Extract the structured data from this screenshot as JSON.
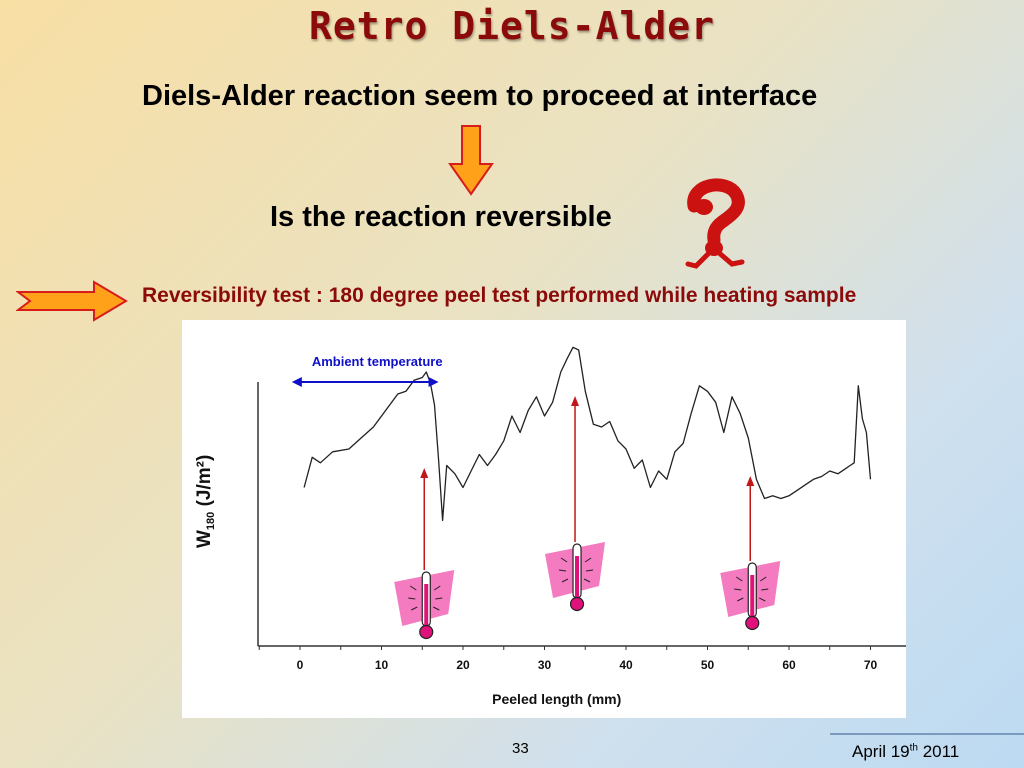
{
  "slide": {
    "title": "Retro Diels-Alder",
    "line1": "Diels-Alder reaction seem to proceed at interface",
    "line2": "Is the reaction reversible",
    "line3": "Reversibility test : 180 degree peel test performed while heating sample",
    "page_number": "33",
    "date_month_day": "April 19",
    "date_suffix": "th",
    "date_year": " 2011"
  },
  "colors": {
    "title": "#8b0a0a",
    "arrow_fill": "#ffa21a",
    "arrow_stroke": "#d81c1c",
    "question_mark": "#cc1111",
    "annotation_blue": "#1010c8",
    "heating_arrow": "#c01818",
    "thermometer_pink": "#f47bc0",
    "line": "#222222"
  },
  "icons": [
    "down-arrow-icon",
    "question-mark-icon",
    "right-arrow-icon",
    "thermometer-icon"
  ],
  "chart_data": {
    "type": "line",
    "xlabel": "Peeled length (mm)",
    "ylabel_main": "W",
    "ylabel_sub": "180",
    "ylabel_unit": " (J/m²)",
    "x_ticks": [
      0,
      10,
      20,
      30,
      40,
      50,
      60,
      70
    ],
    "xlim": [
      -5,
      75
    ],
    "ylim": [
      0,
      100
    ],
    "annotation": "Ambient temperature",
    "ambient_range": [
      -1,
      17
    ],
    "heating_points": [
      15,
      33.5,
      55
    ],
    "series": [
      {
        "x": [
          0.5,
          1.5,
          2.5,
          4,
          6,
          7.5,
          9,
          10.5,
          12,
          13,
          14,
          15,
          15.5,
          16,
          16.5,
          17,
          17.5,
          18,
          19,
          20,
          21,
          22,
          23,
          24,
          25,
          26,
          27,
          28,
          29,
          30,
          31,
          32,
          32.8,
          33.5,
          34.2,
          35,
          36,
          37,
          38,
          39,
          40,
          41,
          42,
          43,
          44,
          45,
          46,
          47,
          48,
          49,
          50,
          51,
          52,
          53,
          54,
          55,
          56,
          57,
          58,
          59,
          60,
          61,
          62,
          63,
          64,
          65,
          66,
          67,
          67.5,
          68,
          68.5,
          69,
          69.5,
          70
        ],
        "y": [
          50,
          61,
          59,
          63,
          64,
          68,
          72,
          78,
          84,
          85,
          89,
          90,
          92,
          88,
          80,
          60,
          38,
          58,
          55,
          50,
          56,
          62,
          58,
          62,
          67,
          76,
          70,
          78,
          83,
          76,
          81,
          92,
          97,
          101,
          100,
          85,
          73,
          72,
          74,
          67,
          64,
          57,
          60,
          50,
          56,
          53,
          63,
          66,
          77,
          87,
          85,
          81,
          70,
          83,
          77,
          68,
          53,
          46,
          47,
          46,
          47,
          49,
          51,
          53,
          54,
          56,
          55,
          57,
          58,
          59,
          87,
          75,
          70,
          53
        ]
      }
    ]
  }
}
